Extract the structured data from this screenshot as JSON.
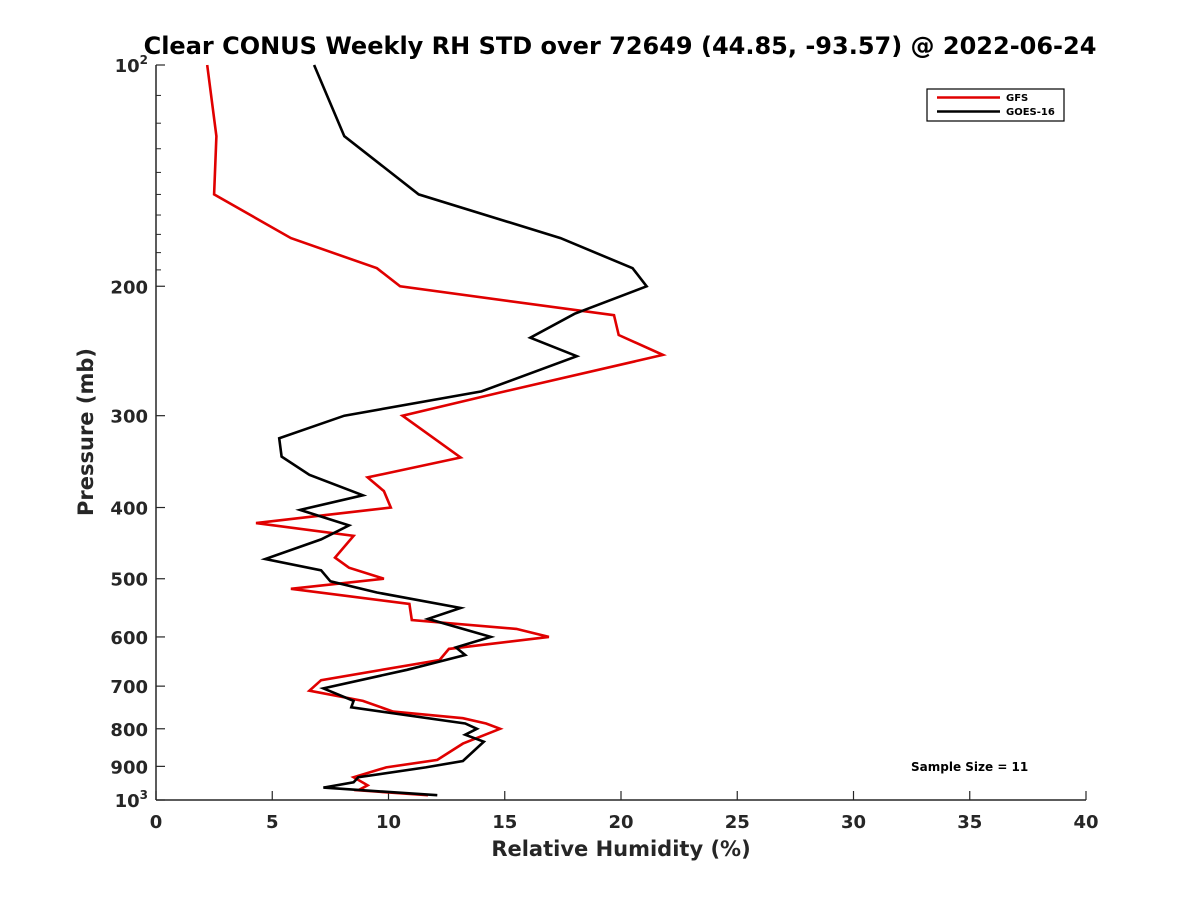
{
  "chart_data": {
    "type": "line",
    "title": "Clear CONUS Weekly RH STD over 72649 (44.85, -93.57) @ 2022-06-24",
    "xlabel": "Relative Humidity (%)",
    "ylabel": "Pressure (mb)",
    "xlim": [
      0,
      40
    ],
    "ylim": [
      100,
      1000
    ],
    "y_scale": "log",
    "y_reversed": true,
    "grid": false,
    "legend_position": "top-right",
    "x_ticks": [
      {
        "value": 0,
        "label": "0"
      },
      {
        "value": 5,
        "label": "5"
      },
      {
        "value": 10,
        "label": "10"
      },
      {
        "value": 15,
        "label": "15"
      },
      {
        "value": 20,
        "label": "20"
      },
      {
        "value": 25,
        "label": "25"
      },
      {
        "value": 30,
        "label": "30"
      },
      {
        "value": 35,
        "label": "35"
      },
      {
        "value": 40,
        "label": "40"
      }
    ],
    "y_ticks": [
      {
        "value": 100,
        "base": "10",
        "exp": "2"
      },
      {
        "value": 200,
        "base": "200",
        "exp": ""
      },
      {
        "value": 300,
        "base": "300",
        "exp": ""
      },
      {
        "value": 400,
        "base": "400",
        "exp": ""
      },
      {
        "value": 500,
        "base": "500",
        "exp": ""
      },
      {
        "value": 600,
        "base": "600",
        "exp": ""
      },
      {
        "value": 700,
        "base": "700",
        "exp": ""
      },
      {
        "value": 800,
        "base": "800",
        "exp": ""
      },
      {
        "value": 900,
        "base": "900",
        "exp": ""
      },
      {
        "value": 1000,
        "base": "10",
        "exp": "3"
      }
    ],
    "annotation": "Sample Size = 11",
    "series": [
      {
        "name": "GFS",
        "color": "#e00000",
        "points": [
          {
            "x": 2.2,
            "y": 100
          },
          {
            "x": 2.6,
            "y": 125
          },
          {
            "x": 2.5,
            "y": 150
          },
          {
            "x": 5.8,
            "y": 172
          },
          {
            "x": 9.5,
            "y": 189
          },
          {
            "x": 10.5,
            "y": 200
          },
          {
            "x": 19.7,
            "y": 219
          },
          {
            "x": 19.9,
            "y": 233
          },
          {
            "x": 21.8,
            "y": 248
          },
          {
            "x": 14.8,
            "y": 279
          },
          {
            "x": 10.6,
            "y": 300
          },
          {
            "x": 13.1,
            "y": 342
          },
          {
            "x": 9.1,
            "y": 364
          },
          {
            "x": 9.8,
            "y": 380
          },
          {
            "x": 10.1,
            "y": 400
          },
          {
            "x": 4.3,
            "y": 420
          },
          {
            "x": 8.5,
            "y": 437
          },
          {
            "x": 7.7,
            "y": 468
          },
          {
            "x": 8.3,
            "y": 483
          },
          {
            "x": 9.8,
            "y": 500
          },
          {
            "x": 5.8,
            "y": 516
          },
          {
            "x": 10.9,
            "y": 541
          },
          {
            "x": 11.0,
            "y": 569
          },
          {
            "x": 15.5,
            "y": 585
          },
          {
            "x": 16.9,
            "y": 600
          },
          {
            "x": 12.6,
            "y": 623
          },
          {
            "x": 12.2,
            "y": 645
          },
          {
            "x": 7.1,
            "y": 687
          },
          {
            "x": 6.6,
            "y": 710
          },
          {
            "x": 8.9,
            "y": 733
          },
          {
            "x": 10.2,
            "y": 758
          },
          {
            "x": 13.2,
            "y": 774
          },
          {
            "x": 14.2,
            "y": 787
          },
          {
            "x": 14.8,
            "y": 800
          },
          {
            "x": 13.2,
            "y": 838
          },
          {
            "x": 12.1,
            "y": 882
          },
          {
            "x": 9.9,
            "y": 903
          },
          {
            "x": 8.5,
            "y": 931
          },
          {
            "x": 9.1,
            "y": 955
          },
          {
            "x": 8.7,
            "y": 970
          },
          {
            "x": 11.7,
            "y": 985
          }
        ]
      },
      {
        "name": "GOES-16",
        "color": "#000000",
        "points": [
          {
            "x": 6.8,
            "y": 100
          },
          {
            "x": 8.1,
            "y": 125
          },
          {
            "x": 11.3,
            "y": 150
          },
          {
            "x": 17.4,
            "y": 172
          },
          {
            "x": 20.5,
            "y": 189
          },
          {
            "x": 21.1,
            "y": 200
          },
          {
            "x": 18.0,
            "y": 218
          },
          {
            "x": 16.1,
            "y": 235
          },
          {
            "x": 18.1,
            "y": 249
          },
          {
            "x": 14.0,
            "y": 278
          },
          {
            "x": 8.1,
            "y": 300
          },
          {
            "x": 5.3,
            "y": 322
          },
          {
            "x": 5.4,
            "y": 341
          },
          {
            "x": 6.6,
            "y": 361
          },
          {
            "x": 8.9,
            "y": 385
          },
          {
            "x": 6.2,
            "y": 403
          },
          {
            "x": 8.3,
            "y": 423
          },
          {
            "x": 7.1,
            "y": 442
          },
          {
            "x": 4.7,
            "y": 470
          },
          {
            "x": 7.1,
            "y": 487
          },
          {
            "x": 7.5,
            "y": 504
          },
          {
            "x": 9.5,
            "y": 522
          },
          {
            "x": 13.1,
            "y": 548
          },
          {
            "x": 11.7,
            "y": 567
          },
          {
            "x": 14.4,
            "y": 600
          },
          {
            "x": 12.9,
            "y": 620
          },
          {
            "x": 13.3,
            "y": 635
          },
          {
            "x": 10.8,
            "y": 665
          },
          {
            "x": 7.2,
            "y": 705
          },
          {
            "x": 8.5,
            "y": 733
          },
          {
            "x": 8.4,
            "y": 748
          },
          {
            "x": 13.3,
            "y": 787
          },
          {
            "x": 13.8,
            "y": 800
          },
          {
            "x": 13.3,
            "y": 815
          },
          {
            "x": 14.1,
            "y": 833
          },
          {
            "x": 13.2,
            "y": 885
          },
          {
            "x": 11.6,
            "y": 903
          },
          {
            "x": 8.7,
            "y": 931
          },
          {
            "x": 8.5,
            "y": 946
          },
          {
            "x": 7.2,
            "y": 962
          },
          {
            "x": 12.1,
            "y": 985
          }
        ]
      }
    ]
  }
}
